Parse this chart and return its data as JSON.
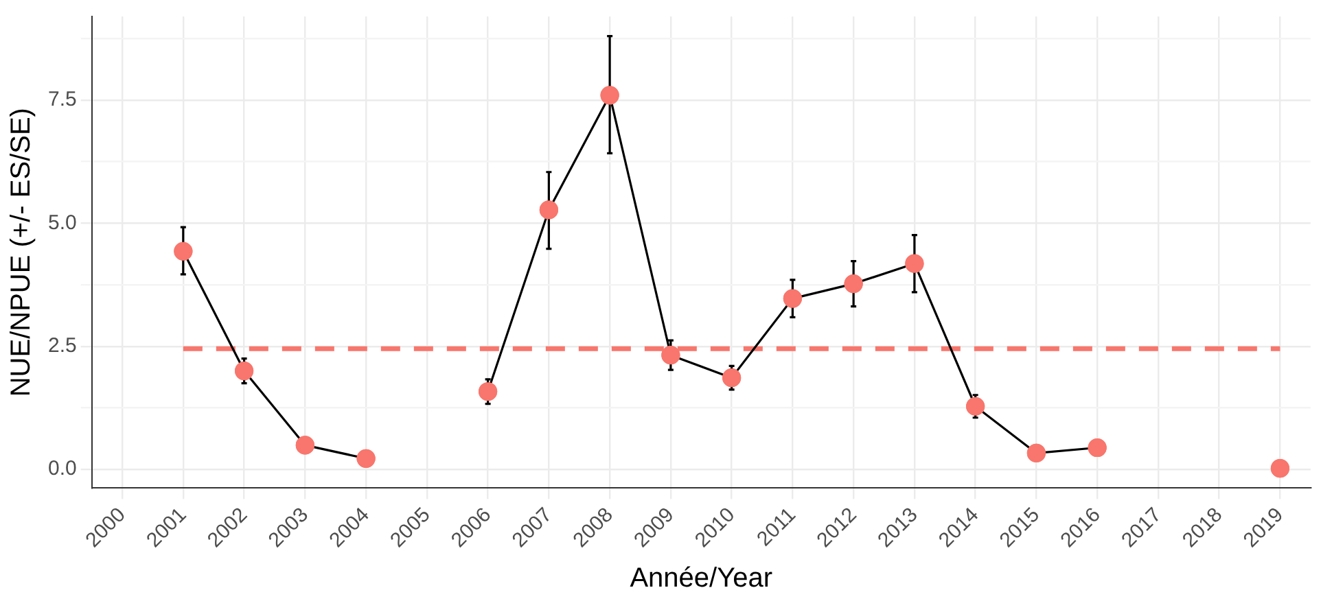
{
  "chart_data": {
    "type": "line",
    "xlabel": "Année/Year",
    "ylabel": "NUE/NPUE (+/- ES/SE)",
    "categories": [
      "2000",
      "2001",
      "2002",
      "2003",
      "2004",
      "2005",
      "2006",
      "2007",
      "2008",
      "2009",
      "2010",
      "2011",
      "2012",
      "2013",
      "2014",
      "2015",
      "2016",
      "2017",
      "2018",
      "2019"
    ],
    "series": [
      {
        "color": "#f8766d",
        "values": [
          null,
          4.43,
          2.0,
          0.49,
          0.22,
          null,
          1.58,
          5.27,
          7.6,
          2.32,
          1.86,
          3.47,
          3.77,
          4.18,
          1.28,
          0.33,
          0.44,
          null,
          null,
          0.02
        ],
        "errors": [
          null,
          [
            3.96,
            4.92
          ],
          0.25,
          null,
          null,
          null,
          0.25,
          [
            4.48,
            6.04
          ],
          [
            6.42,
            8.8
          ],
          0.3,
          0.24,
          0.38,
          0.46,
          0.58,
          0.23,
          null,
          null,
          null,
          null,
          null
        ]
      }
    ],
    "ylim": [
      -0.38,
      9.2
    ],
    "yticks": [
      {
        "value": 0,
        "label": "0.0"
      },
      {
        "value": 1.25,
        "label": null
      },
      2.5,
      {
        "value": 3.75,
        "label": null
      },
      {
        "value": 5,
        "label": "5.0"
      },
      {
        "value": 6.25,
        "label": null
      },
      7.5,
      {
        "value": 8.75,
        "label": null
      }
    ],
    "ref_lines": [
      {
        "axis": "y",
        "value": 2.45,
        "color": "#f8766d",
        "line_style": "dashed"
      }
    ],
    "grid": true,
    "legend": false,
    "marker": "circle",
    "line_style": "solid"
  }
}
